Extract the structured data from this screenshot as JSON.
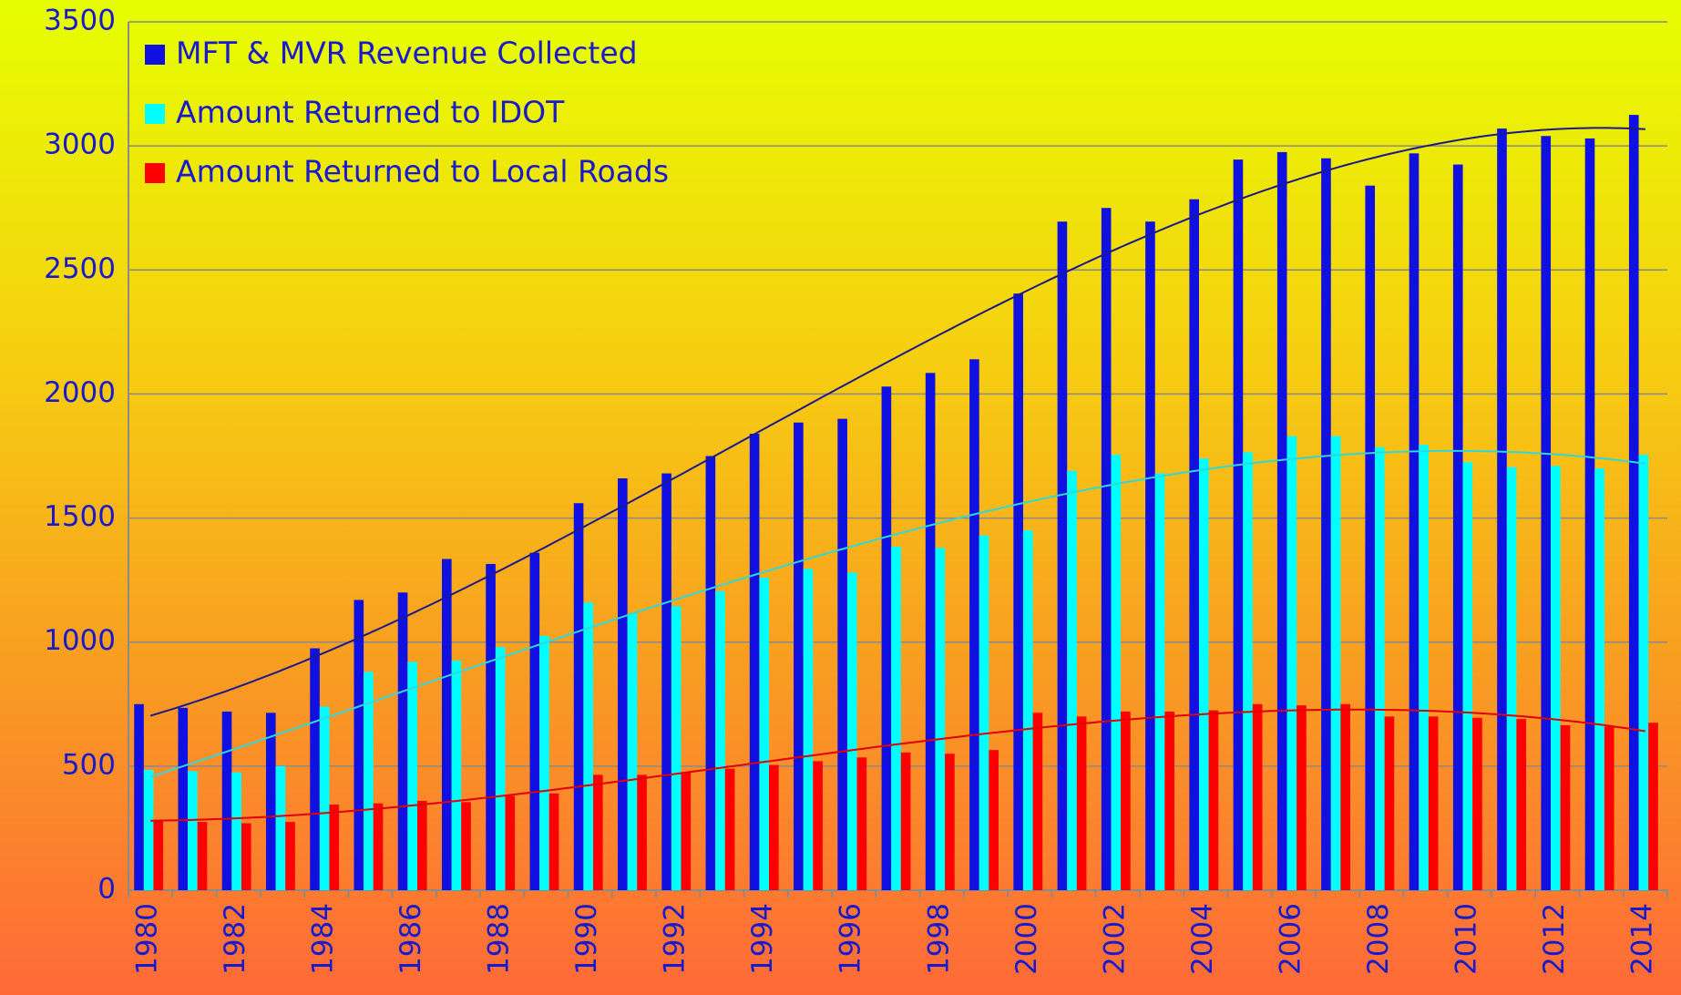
{
  "chart_data": {
    "type": "bar",
    "categories": [
      "1980",
      null,
      "1982",
      null,
      "1984",
      null,
      "1986",
      null,
      "1988",
      null,
      "1990",
      null,
      "1992",
      null,
      "1994",
      null,
      "1996",
      null,
      "1998",
      null,
      "2000",
      null,
      "2002",
      null,
      "2004",
      null,
      "2006",
      null,
      "2008",
      null,
      "2010",
      null,
      "2012",
      null,
      "2014"
    ],
    "series": [
      {
        "name": "MFT & MVR Revenue Collected",
        "color": "#1010e0",
        "trendline_color": "#1a1a8c",
        "values": [
          750,
          735,
          720,
          715,
          975,
          1170,
          1200,
          1335,
          1315,
          1360,
          1560,
          1660,
          1680,
          1750,
          1840,
          1885,
          1900,
          2030,
          2085,
          2140,
          2405,
          2695,
          2750,
          2695,
          2785,
          2945,
          2975,
          2950,
          2840,
          2970,
          2925,
          3070,
          3040,
          3030,
          3125
        ]
      },
      {
        "name": "Amount Returned to IDOT",
        "color": "#00ffff",
        "trendline_color": "#30d8d8",
        "values": [
          485,
          480,
          475,
          500,
          740,
          880,
          920,
          925,
          980,
          1025,
          1160,
          1115,
          1145,
          1205,
          1260,
          1295,
          1280,
          1385,
          1380,
          1430,
          1450,
          1690,
          1755,
          1680,
          1740,
          1765,
          1830,
          1830,
          1785,
          1795,
          1725,
          1705,
          1710,
          1700,
          1755
        ]
      },
      {
        "name": "Amount Returned to Local Roads",
        "color": "#ff0000",
        "trendline_color": "#e00000",
        "values": [
          280,
          275,
          270,
          275,
          345,
          350,
          360,
          355,
          380,
          390,
          465,
          465,
          475,
          490,
          505,
          520,
          535,
          555,
          550,
          565,
          715,
          700,
          720,
          720,
          725,
          750,
          745,
          750,
          700,
          700,
          695,
          690,
          665,
          660,
          675
        ]
      }
    ],
    "ylim": [
      0,
      3500
    ],
    "yticks": [
      0,
      500,
      1000,
      1500,
      2000,
      2500,
      3000,
      3500
    ],
    "grid": true,
    "legend": "top-left",
    "trendline": "polynomial",
    "trendline_order": 3
  }
}
